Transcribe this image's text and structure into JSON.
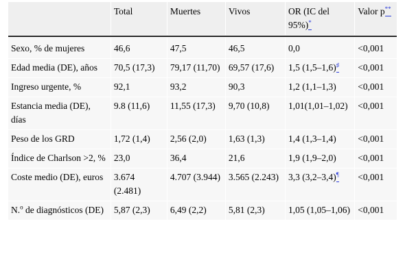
{
  "headers": [
    {
      "text": "",
      "fn": ""
    },
    {
      "text": "Total",
      "fn": ""
    },
    {
      "text": "Muertes",
      "fn": ""
    },
    {
      "text": "Vivos",
      "fn": ""
    },
    {
      "text": "OR (IC del 95%)",
      "fn": "*"
    },
    {
      "text": "Valor p",
      "fn": "**"
    }
  ],
  "rows": [
    {
      "label": "Sexo, % de mujeres",
      "total": "46,6",
      "muertes": "47,5",
      "vivos": "46,5",
      "or": "0,0",
      "or_fn": "",
      "p": "<0,001"
    },
    {
      "label": "Edad media (DE), años",
      "total": "70,5 (17,3)",
      "muertes": "79,17 (11,70)",
      "vivos": "69,57 (17,6)",
      "or": "1,5 (1,5–1,6)",
      "or_fn": "♯",
      "p": "<0,001"
    },
    {
      "label": "Ingreso urgente, %",
      "total": "92,1",
      "muertes": "93,2",
      "vivos": "90,3",
      "or": "1,2 (1,1–1,3)",
      "or_fn": "",
      "p": "<0,001"
    },
    {
      "label": "Estancia media (DE), días",
      "total": "9.8 (11,6)",
      "muertes": "11,55 (17,3)",
      "vivos": "9,70 (10,8)",
      "or": "1,01(1,01–1,02)",
      "or_fn": "",
      "p": "<0,001"
    },
    {
      "label": "Peso de los GRD",
      "total": "1,72 (1,4)",
      "muertes": "2,56 (2,0)",
      "vivos": "1,63 (1,3)",
      "or": "1,4 (1,3–1,4)",
      "or_fn": "",
      "p": "<0,001"
    },
    {
      "label": "Índice de Charlson >2, %",
      "total": "23,0",
      "muertes": "36,4",
      "vivos": "21,6",
      "or": "1,9 (1,9–2,0)",
      "or_fn": "",
      "p": "<0,001"
    },
    {
      "label": "Coste medio (DE), euros",
      "total": "3.674 (2.481)",
      "muertes": "4.707 (3.944)",
      "vivos": "3.565 (2.243)",
      "or": "3,3 (3,2–3,4)",
      "or_fn": "¶",
      "p": "<0,001"
    },
    {
      "label_pre": "N.",
      "label_sup": "o",
      "label": " de diagnósticos (DE)",
      "total": "5,87 (2,3)",
      "muertes": "6,49 (2,2)",
      "vivos": "5,81 (2,3)",
      "or": "1,05 (1,05–1,06)",
      "or_fn": "",
      "p": "<0,001"
    }
  ]
}
